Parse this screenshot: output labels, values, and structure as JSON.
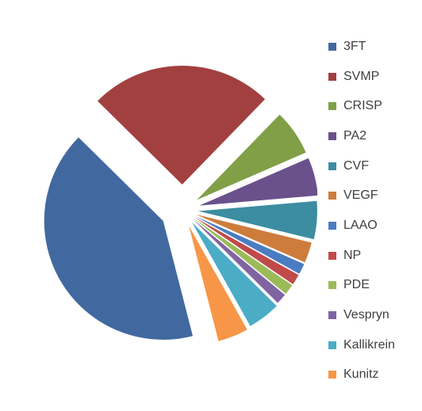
{
  "chart_data": {
    "type": "pie",
    "exploded": true,
    "legend_position": "right",
    "slices": [
      {
        "label": "3FT",
        "value": 40.0,
        "color": "#4169A0"
      },
      {
        "label": "SVMP",
        "value": 24.0,
        "color": "#A24040"
      },
      {
        "label": "CRISP",
        "value": 6.0,
        "color": "#809F46"
      },
      {
        "label": "PA2",
        "value": 5.0,
        "color": "#6A518C"
      },
      {
        "label": "CVF",
        "value": 5.0,
        "color": "#3C8DA1"
      },
      {
        "label": "VEGF",
        "value": 2.7,
        "color": "#CD7C3C"
      },
      {
        "label": "LAAO",
        "value": 1.4,
        "color": "#4A7CC2"
      },
      {
        "label": "NP",
        "value": 1.4,
        "color": "#C04A4A"
      },
      {
        "label": "PDE",
        "value": 1.4,
        "color": "#9BBB59"
      },
      {
        "label": "Vespryn",
        "value": 1.4,
        "color": "#8064A2"
      },
      {
        "label": "Kallikrein",
        "value": 4.3,
        "color": "#4BACC6"
      },
      {
        "label": "Kunitz",
        "value": 4.0,
        "color": "#F79646"
      }
    ]
  }
}
